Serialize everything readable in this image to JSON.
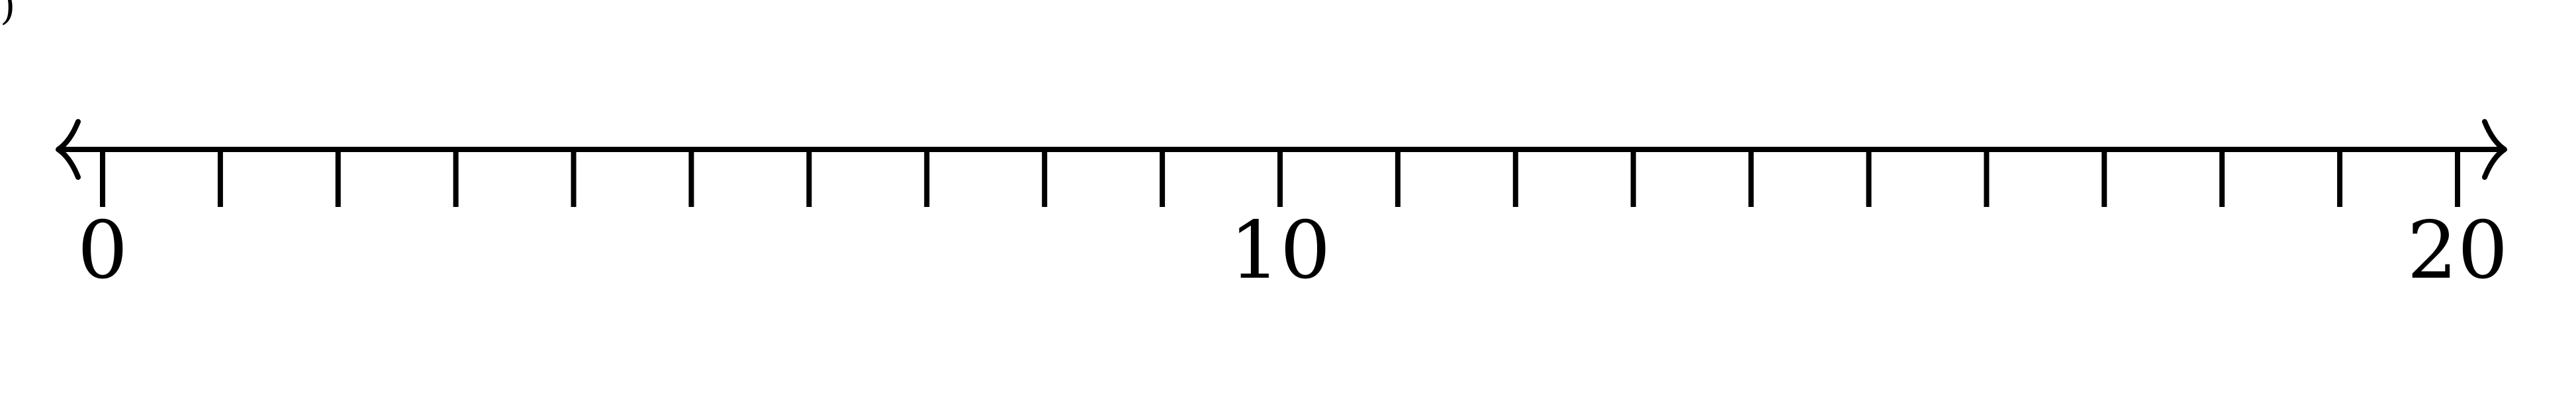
{
  "number_line": {
    "min": 0,
    "max": 20,
    "tick_step": 1,
    "labels": [
      {
        "value": 0,
        "text": "0"
      },
      {
        "value": 10,
        "text": "10"
      },
      {
        "value": 20,
        "text": "20"
      }
    ],
    "arrows": [
      "left",
      "right"
    ],
    "line_color": "#000000"
  },
  "corner_mark": ")"
}
